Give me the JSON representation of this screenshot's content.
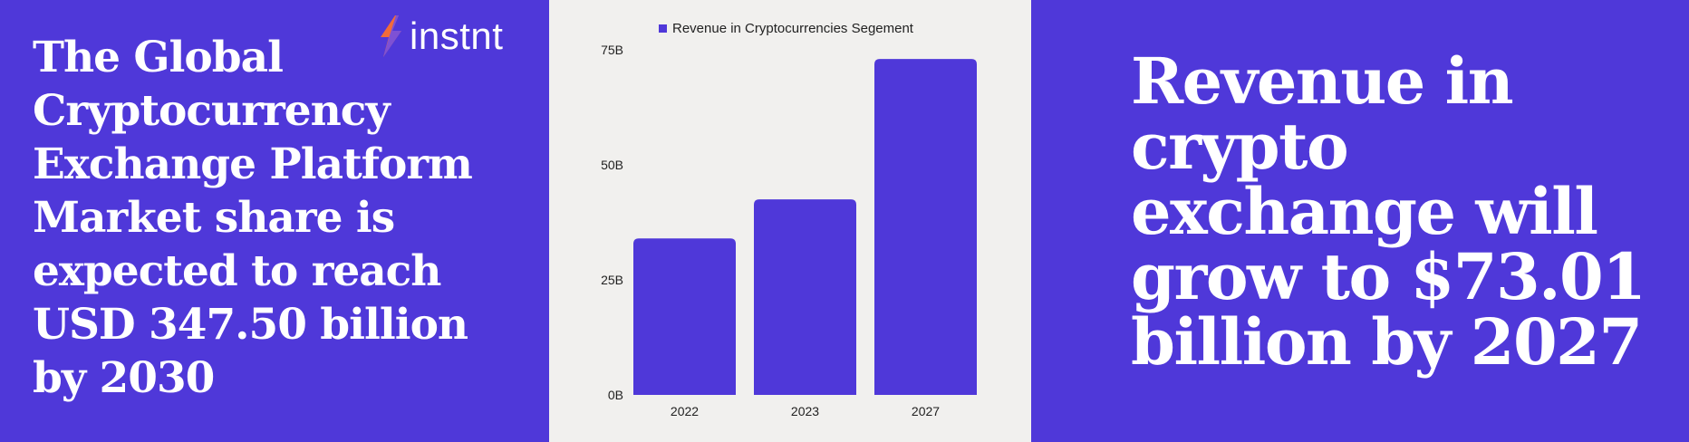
{
  "left": {
    "headline": "The Global Cryptocurrency Exchange Platform Market share is expected to reach USD 347.50 billion by 2030"
  },
  "logo": {
    "text": "instnt",
    "icon": "lightning-bolt-icon"
  },
  "right": {
    "headline": "Revenue in crypto exchange will grow to $73.01 billion by 2027"
  },
  "colors": {
    "brand_purple": "#4f38d9",
    "chart_background": "#f1f0ee",
    "bar": "#4f38d9",
    "bolt_orange": "#f26b3a",
    "bolt_purple": "#6a4cf0"
  },
  "chart_data": {
    "type": "bar",
    "categories": [
      "2022",
      "2023",
      "2027"
    ],
    "series": [
      {
        "name": "Revenue in Cryptocurrencies Segement",
        "values": [
          34,
          42.5,
          73.01
        ]
      }
    ],
    "yticks": [
      "0B",
      "25B",
      "50B",
      "75B"
    ],
    "ytick_values": [
      0,
      25,
      50,
      75
    ],
    "ylim": [
      0,
      75
    ],
    "grid": false,
    "legend": "top-center",
    "title": "",
    "xlabel": "",
    "ylabel": ""
  }
}
